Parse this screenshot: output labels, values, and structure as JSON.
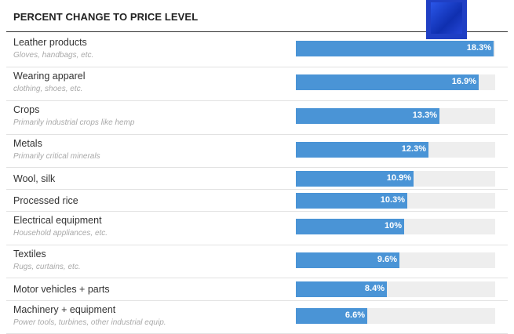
{
  "chart_data": {
    "type": "bar",
    "orientation": "horizontal",
    "title": "PERCENT CHANGE TO PRICE LEVEL",
    "xlim": [
      0,
      18.3
    ],
    "colors": {
      "bar": "#4a94d6",
      "track": "#eeeeee",
      "text": "#333333",
      "subtext": "#a9a9a9"
    },
    "rows": [
      {
        "category": "Leather products",
        "note": "Gloves, handbags, etc.",
        "value": 18.3,
        "value_label": "18.3%"
      },
      {
        "category": "Wearing apparel",
        "note": "clothing, shoes, etc.",
        "value": 16.9,
        "value_label": "16.9%"
      },
      {
        "category": "Crops",
        "note": "Primarily industrial crops like hemp",
        "value": 13.3,
        "value_label": "13.3%"
      },
      {
        "category": "Metals",
        "note": "Primarily critical minerals",
        "value": 12.3,
        "value_label": "12.3%"
      },
      {
        "category": "Wool, silk",
        "note": "",
        "value": 10.9,
        "value_label": "10.9%"
      },
      {
        "category": "Processed rice",
        "note": "",
        "value": 10.3,
        "value_label": "10.3%"
      },
      {
        "category": "Electrical equipment",
        "note": "Household appliances, etc.",
        "value": 10.0,
        "value_label": "10%"
      },
      {
        "category": "Textiles",
        "note": "Rugs, curtains, etc.",
        "value": 9.6,
        "value_label": "9.6%"
      },
      {
        "category": "Motor vehicles + parts",
        "note": "",
        "value": 8.4,
        "value_label": "8.4%"
      },
      {
        "category": "Machinery + equipment",
        "note": "Power tools, turbines, other industrial equip.",
        "value": 6.6,
        "value_label": "6.6%"
      }
    ]
  }
}
